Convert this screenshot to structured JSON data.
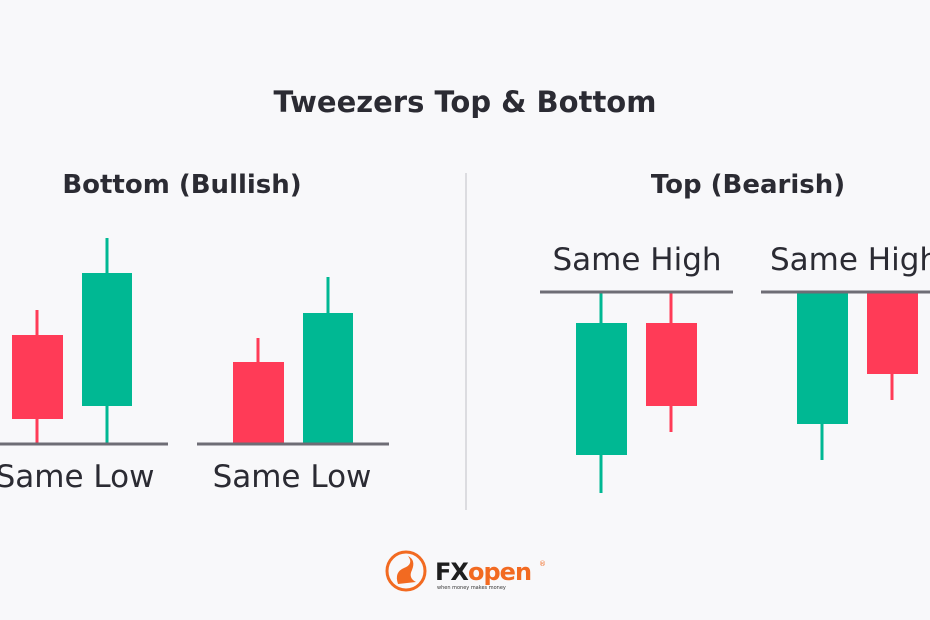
{
  "title": "Tweezers Top & Bottom",
  "left": {
    "heading": "Bottom (Bullish)",
    "labels": [
      "Same Low",
      "Same Low"
    ]
  },
  "right": {
    "heading": "Top (Bearish)",
    "labels": [
      "Same High",
      "Same High"
    ]
  },
  "logo": {
    "brand": "FXopen",
    "tagline": "when money makes money",
    "registered": "®"
  },
  "colors": {
    "bullish": "#00b893",
    "bearish": "#ff3b57",
    "line": "#6e6d75",
    "logo": "#f26a21",
    "background": "#f8f8fa"
  }
}
